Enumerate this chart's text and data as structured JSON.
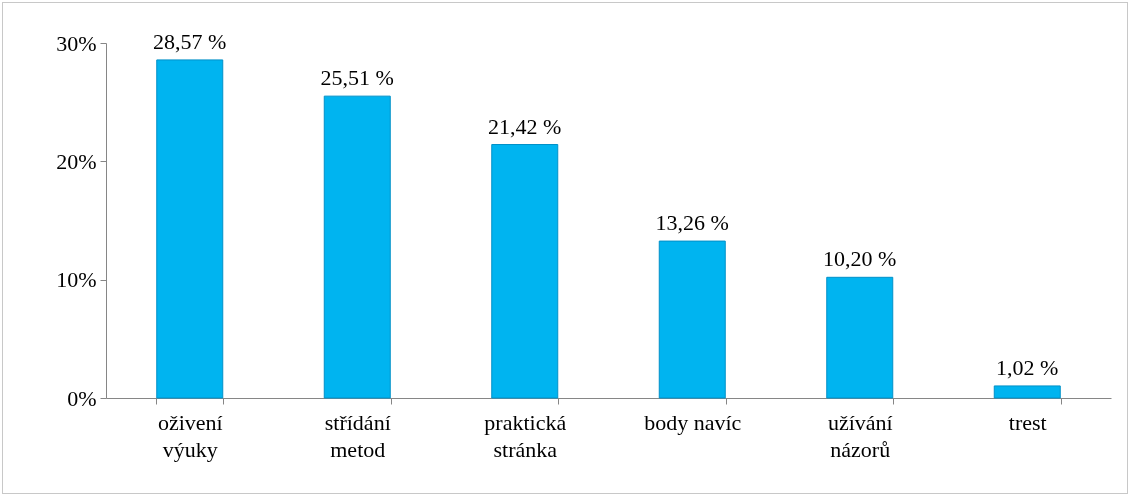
{
  "chart_data": {
    "type": "bar",
    "categories": [
      "oživení výuky",
      "střídání metod",
      "praktická stránka",
      "body navíc",
      "užívání názorů",
      "trest"
    ],
    "values": [
      28.57,
      25.51,
      21.42,
      13.26,
      10.2,
      1.02
    ],
    "value_labels": [
      "28,57 %",
      "25,51 %",
      "21,42 %",
      "13,26 %",
      "10,20 %",
      "1,02 %"
    ],
    "color": "#00b4f0",
    "ylim": [
      0,
      30
    ],
    "yticks": [
      {
        "value": 0,
        "label": "0%"
      },
      {
        "value": 10,
        "label": "10%"
      },
      {
        "value": 20,
        "label": "20%"
      },
      {
        "value": 30,
        "label": "30%"
      }
    ],
    "grid": false
  }
}
